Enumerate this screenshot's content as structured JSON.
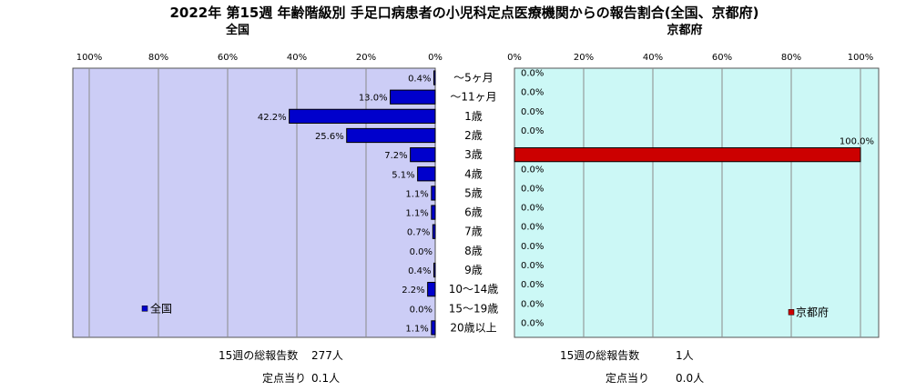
{
  "title": "2022年 第15週  年齢階級別 手足口病患者の小児科定点医療機関からの報告割合(全国、京都府)",
  "chart_data": {
    "type": "bar",
    "orientation": "horizontal",
    "categories": [
      "～5ヶ月",
      "～11ヶ月",
      "1歳",
      "2歳",
      "3歳",
      "4歳",
      "5歳",
      "6歳",
      "7歳",
      "8歳",
      "9歳",
      "10～14歳",
      "15～19歳",
      "20歳以上"
    ],
    "axis_ticks": [
      "0%",
      "20%",
      "40%",
      "60%",
      "80%",
      "100%"
    ],
    "xlim": [
      0,
      100
    ],
    "grid": true,
    "panels": [
      {
        "name": "全国",
        "title": "全国",
        "direction": "right-to-left",
        "color": "#0000cc",
        "plot_bg": "#cccdf6",
        "values": [
          0.4,
          13.0,
          42.2,
          25.6,
          7.2,
          5.1,
          1.1,
          1.1,
          0.7,
          0.0,
          0.4,
          2.2,
          0.0,
          1.1
        ],
        "labels": [
          "0.4%",
          "13.0%",
          "42.2%",
          "25.6%",
          "7.2%",
          "5.1%",
          "1.1%",
          "1.1%",
          "0.7%",
          "0.0%",
          "0.4%",
          "2.2%",
          "0.0%",
          "1.1%"
        ],
        "legend_label": "全国",
        "legend_position": "bottom-left",
        "footer": [
          {
            "label": "15週の総報告数",
            "value": "277人"
          },
          {
            "label": "定点当り",
            "value": "0.1人"
          }
        ]
      },
      {
        "name": "京都府",
        "title": "京都府",
        "direction": "left-to-right",
        "color": "#cc0000",
        "plot_bg": "#ccf8f6",
        "values": [
          0.0,
          0.0,
          0.0,
          0.0,
          100.0,
          0.0,
          0.0,
          0.0,
          0.0,
          0.0,
          0.0,
          0.0,
          0.0,
          0.0
        ],
        "labels": [
          "0.0%",
          "0.0%",
          "0.0%",
          "0.0%",
          "100.0%",
          "0.0%",
          "0.0%",
          "0.0%",
          "0.0%",
          "0.0%",
          "0.0%",
          "0.0%",
          "0.0%",
          "0.0%"
        ],
        "legend_label": "京都府",
        "legend_position": "bottom-right",
        "footer": [
          {
            "label": "15週の総報告数",
            "value": "1人"
          },
          {
            "label": "定点当り",
            "value": "0.0人"
          }
        ]
      }
    ]
  }
}
